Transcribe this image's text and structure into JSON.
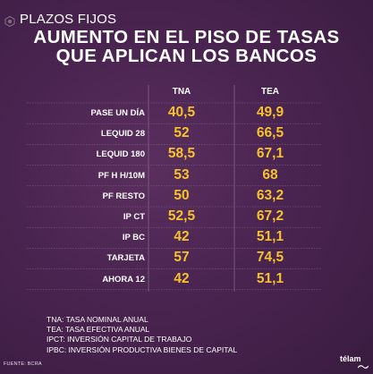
{
  "header": {
    "kicker": "PLAZOS FIJOS",
    "title_line1": "AUMENTO EN EL PISO DE TASAS",
    "title_line2": "QUE APLICAN LOS BANCOS"
  },
  "table": {
    "columns": [
      "TNA",
      "TEA"
    ],
    "rows": [
      {
        "label": "PASE UN DÍA",
        "tna": "40,5",
        "tea": "49,9"
      },
      {
        "label": "LEQUID 28",
        "tna": "52",
        "tea": "66,5"
      },
      {
        "label": "LEQUID 180",
        "tna": "58,5",
        "tea": "67,1"
      },
      {
        "label": "PF H H/10M",
        "tna": "53",
        "tea": "68"
      },
      {
        "label": "PF RESTO",
        "tna": "50",
        "tea": "63,2"
      },
      {
        "label": "IP CT",
        "tna": "52,5",
        "tea": "67,2"
      },
      {
        "label": "IP BC",
        "tna": "42",
        "tea": "51,1"
      },
      {
        "label": "TARJETA",
        "tna": "57",
        "tea": "74,5"
      },
      {
        "label": "AHORA 12",
        "tna": "42",
        "tea": "51,1"
      }
    ]
  },
  "glossary": [
    "TNA: TASA NOMINAL ANUAL",
    "TEA: TASA EFECTIVA ANUAL",
    "IPCT: INVERSIÓN CAPITAL DE TRABAJO",
    "IPBC: INVERSIÓN PRODUCTIVA BIENES DE CAPITAL"
  ],
  "source": "FUENTE: BCRA",
  "brand": "télam",
  "colors": {
    "background": "#4a2450",
    "value": "#f5c22b",
    "text": "#ffffff",
    "divider": "#8a6a8e"
  }
}
